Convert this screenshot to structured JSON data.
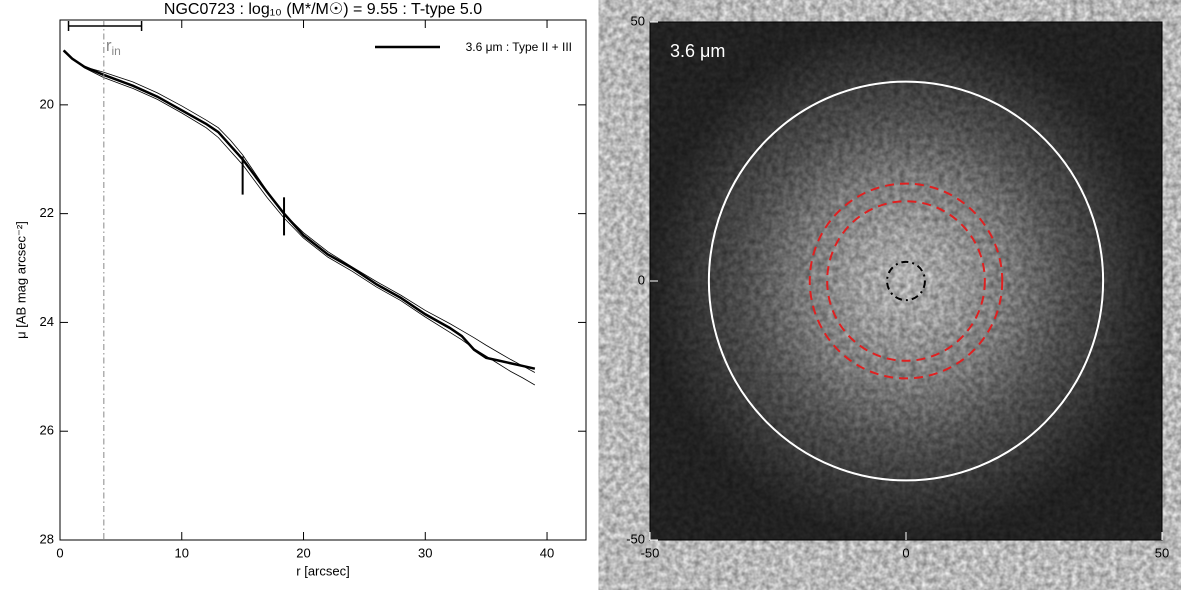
{
  "chart_data": [
    {
      "type": "line",
      "title": "NGC0723 : log₁₀ (M*/M☉) = 9.55 : T-type 5.0",
      "xlabel": "r [arcsec]",
      "ylabel": "μ [AB mag arcsec⁻²]",
      "xlim": [
        0,
        43.2
      ],
      "xticks": [
        0,
        10,
        20,
        30,
        40
      ],
      "ylim": [
        28,
        18.44
      ],
      "yticks": [
        20,
        22,
        24,
        26,
        28
      ],
      "legend": "top-right",
      "x": [
        0.3,
        1,
        2,
        3.6,
        6,
        8,
        10,
        12,
        13,
        14,
        15,
        16,
        17,
        18.4,
        20,
        22,
        24,
        26,
        28,
        30,
        32,
        33,
        34,
        35,
        36,
        37,
        38,
        39
      ],
      "series": [
        {
          "name": "3.6 μm : Type II + III",
          "color": "#000000",
          "width": 2.5,
          "values": [
            19.0,
            19.15,
            19.3,
            19.45,
            19.65,
            19.85,
            20.1,
            20.35,
            20.5,
            20.75,
            21.0,
            21.3,
            21.6,
            22.0,
            22.4,
            22.75,
            23.0,
            23.3,
            23.55,
            23.85,
            24.1,
            24.25,
            24.5,
            24.65,
            24.7,
            24.75,
            24.8,
            24.85
          ]
        },
        {
          "color": "#000000",
          "width": 0.8,
          "values": [
            19.0,
            19.15,
            19.3,
            19.4,
            19.58,
            19.78,
            20.02,
            20.28,
            20.42,
            20.65,
            20.92,
            21.25,
            21.58,
            22.0,
            22.35,
            22.7,
            22.98,
            23.25,
            23.5,
            23.78,
            24.02,
            24.15,
            24.28,
            24.42,
            24.55,
            24.68,
            24.8,
            24.92
          ]
        },
        {
          "color": "#000000",
          "width": 0.8,
          "values": [
            19.0,
            19.15,
            19.32,
            19.5,
            19.7,
            19.9,
            20.15,
            20.42,
            20.6,
            20.85,
            21.1,
            21.4,
            21.7,
            22.08,
            22.45,
            22.8,
            23.06,
            23.35,
            23.6,
            23.9,
            24.18,
            24.32,
            24.48,
            24.62,
            24.76,
            24.9,
            25.02,
            25.15
          ]
        }
      ],
      "breaks": [
        {
          "x": 15,
          "y": 21.3
        },
        {
          "x": 18.4,
          "y": 22.05
        }
      ],
      "break_halfheight": 0.35,
      "r_in": 3.6,
      "r_in_label": {
        "text": "r",
        "sub": "in"
      },
      "r_in_range": [
        0.7,
        6.7
      ],
      "r_in_range_y": 18.55,
      "r_in_color": "#888888"
    },
    {
      "type": "image",
      "annotation": "3.6 μm",
      "xlim": [
        -50,
        50
      ],
      "xticks": [
        -50,
        0,
        50
      ],
      "ylim": [
        -50,
        50
      ],
      "yticks": [
        -50,
        0,
        50
      ],
      "circles": [
        {
          "x": 0,
          "y": 0,
          "r": 38.5,
          "color": "#ffffff",
          "dash": "solid"
        },
        {
          "x": 0,
          "y": 0,
          "r": 18.8,
          "color": "#e02020",
          "dash": "dashed"
        },
        {
          "x": 0,
          "y": 0,
          "r": 15.4,
          "color": "#e02020",
          "dash": "dashed"
        },
        {
          "x": 0,
          "y": 0,
          "r": 3.7,
          "color": "#000000",
          "dash": "dashdot"
        }
      ]
    }
  ]
}
